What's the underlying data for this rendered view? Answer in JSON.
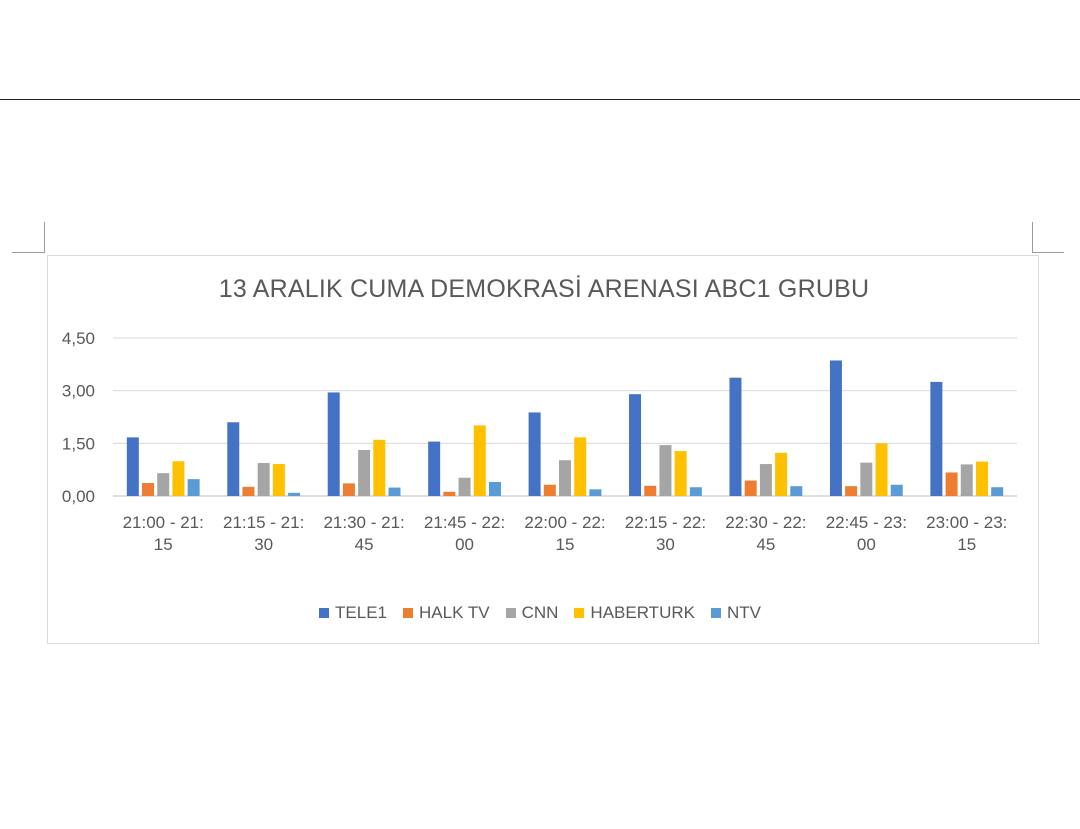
{
  "chart_data": {
    "type": "bar",
    "title": "13 ARALIK CUMA DEMOKRASİ ARENASI ABC1 GRUBU",
    "xlabel": "",
    "ylabel": "",
    "ylim": [
      0,
      4.5
    ],
    "yticks": [
      "0,00",
      "1,50",
      "3,00",
      "4,50"
    ],
    "ytick_values": [
      0,
      1.5,
      3,
      4.5
    ],
    "grid": true,
    "legend_position": "bottom",
    "categories": [
      [
        "21:00 - 21:",
        "15"
      ],
      [
        "21:15 - 21:",
        "30"
      ],
      [
        "21:30 - 21:",
        "45"
      ],
      [
        "21:45 - 22:",
        "00"
      ],
      [
        "22:00 - 22:",
        "15"
      ],
      [
        "22:15 - 22:",
        "30"
      ],
      [
        "22:30 - 22:",
        "45"
      ],
      [
        "22:45 - 23:",
        "00"
      ],
      [
        "23:00 - 23:",
        "15"
      ]
    ],
    "series": [
      {
        "name": "TELE1",
        "color": "#4472c4",
        "values": [
          1.67,
          2.1,
          2.95,
          1.55,
          2.38,
          2.9,
          3.37,
          3.86,
          3.25
        ]
      },
      {
        "name": "HALK TV",
        "color": "#ed7d31",
        "values": [
          0.37,
          0.26,
          0.36,
          0.12,
          0.32,
          0.29,
          0.44,
          0.28,
          0.67
        ]
      },
      {
        "name": "CNN",
        "color": "#a5a5a5",
        "values": [
          0.65,
          0.94,
          1.31,
          0.52,
          1.02,
          1.45,
          0.91,
          0.95,
          0.9
        ]
      },
      {
        "name": "HABERTURK",
        "color": "#ffc000",
        "values": [
          0.99,
          0.91,
          1.6,
          2.01,
          1.67,
          1.28,
          1.23,
          1.5,
          0.98
        ]
      },
      {
        "name": "NTV",
        "color": "#5b9bd5",
        "values": [
          0.48,
          0.09,
          0.24,
          0.4,
          0.19,
          0.25,
          0.28,
          0.32,
          0.25
        ]
      }
    ]
  }
}
